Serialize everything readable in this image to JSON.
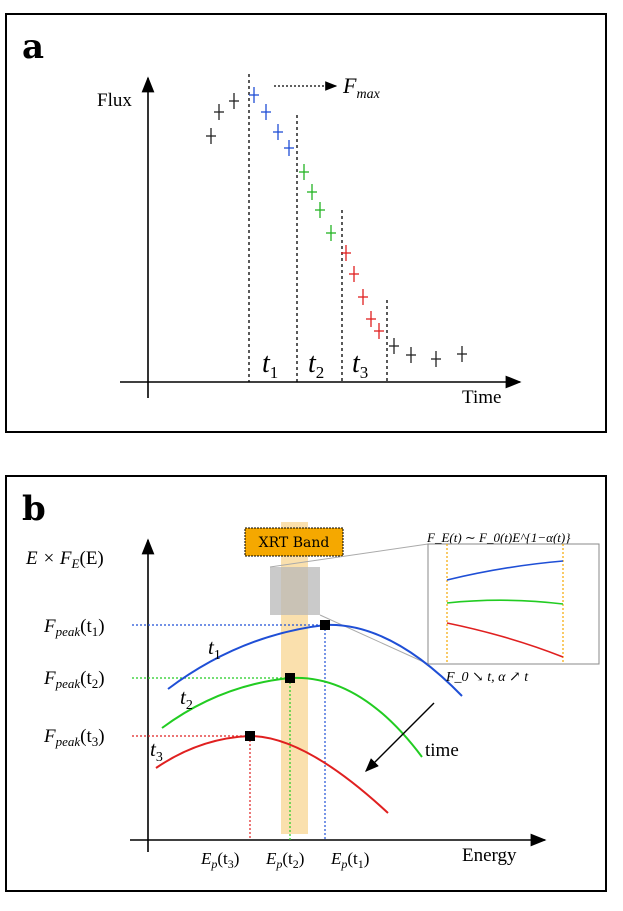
{
  "panel_a": {
    "letter": "a",
    "y_label": "Flux",
    "x_label": "Time",
    "fmax_label": "F",
    "fmax_sub": "max",
    "intervals": [
      {
        "label": "t",
        "sub": "1"
      },
      {
        "label": "t",
        "sub": "2"
      },
      {
        "label": "t",
        "sub": "3"
      }
    ],
    "colors": {
      "pre": "#222222",
      "t1": "#1f4fd6",
      "t2": "#22b422",
      "t3": "#e02020",
      "post": "#222222"
    }
  },
  "panel_b": {
    "letter": "b",
    "y_label": "E × F",
    "y_label_sub": "E",
    "y_label_tail": "(E)",
    "x_label": "Energy",
    "band_label": "XRT Band",
    "time_label": "time",
    "peaks": [
      {
        "label": "F",
        "sub": "peak",
        "arg": "(t",
        "arg_sub": "1",
        "close": ")"
      },
      {
        "label": "F",
        "sub": "peak",
        "arg": "(t",
        "arg_sub": "2",
        "close": ")"
      },
      {
        "label": "F",
        "sub": "peak",
        "arg": "(t",
        "arg_sub": "3",
        "close": ")"
      }
    ],
    "energies": [
      {
        "label": "E",
        "sub": "p",
        "arg": "(t",
        "arg_sub": "3",
        "close": ")"
      },
      {
        "label": "E",
        "sub": "p",
        "arg": "(t",
        "arg_sub": "2",
        "close": ")"
      },
      {
        "label": "E",
        "sub": "p",
        "arg": "(t",
        "arg_sub": "1",
        "close": ")"
      }
    ],
    "curve_labels": [
      {
        "label": "t",
        "sub": "1"
      },
      {
        "label": "t",
        "sub": "2"
      },
      {
        "label": "t",
        "sub": "3"
      }
    ],
    "inset_formula": "F_E(t) ∼ F_0(t)E^{1−α(t)}",
    "inset_caption": "F_0 ↘ t,   α ↗ t",
    "colors": {
      "t1": "#1f4fd6",
      "t2": "#22cc22",
      "t3": "#e02020",
      "band": "#f5c66a",
      "band_box": "#f5a800"
    }
  }
}
